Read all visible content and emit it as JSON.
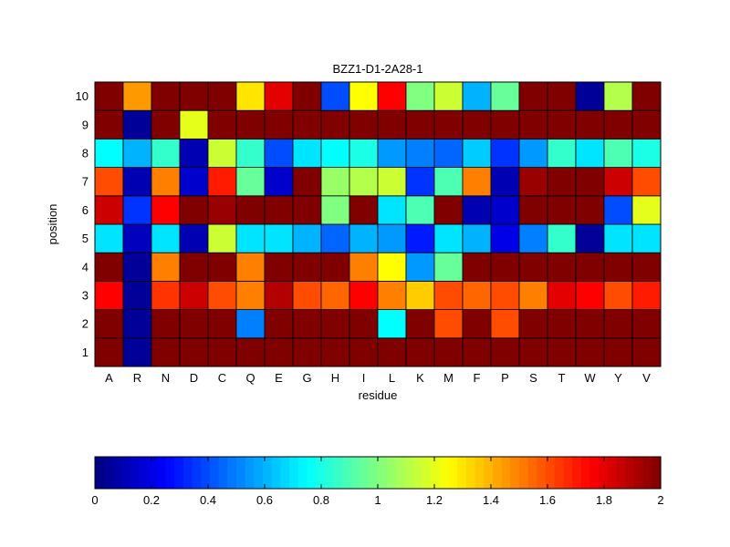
{
  "chart_data": {
    "type": "heatmap",
    "title": "BZZ1-D1-2A28-1",
    "xlabel": "residue",
    "ylabel": "position",
    "x_categories": [
      "A",
      "R",
      "N",
      "D",
      "C",
      "Q",
      "E",
      "G",
      "H",
      "I",
      "L",
      "K",
      "M",
      "F",
      "P",
      "S",
      "T",
      "W",
      "Y",
      "V"
    ],
    "y_categories": [
      "1",
      "2",
      "3",
      "4",
      "5",
      "6",
      "7",
      "8",
      "9",
      "10"
    ],
    "values": [
      [
        2.0,
        0.05,
        2.0,
        2.0,
        2.0,
        2.0,
        2.0,
        2.0,
        2.0,
        2.0,
        2.0,
        2.0,
        2.0,
        2.0,
        2.0,
        2.0,
        2.0,
        2.0,
        2.0,
        2.0
      ],
      [
        2.0,
        0.05,
        2.0,
        2.0,
        2.0,
        0.5,
        2.0,
        2.0,
        2.0,
        2.0,
        0.75,
        2.0,
        1.6,
        2.0,
        1.6,
        2.0,
        2.0,
        2.0,
        2.0,
        2.0
      ],
      [
        1.75,
        0.05,
        1.65,
        1.85,
        1.6,
        1.5,
        1.9,
        1.6,
        1.55,
        1.75,
        1.5,
        1.35,
        1.6,
        1.55,
        1.6,
        1.5,
        1.8,
        1.75,
        1.6,
        1.7
      ],
      [
        2.0,
        0.05,
        1.5,
        2.0,
        2.0,
        1.5,
        2.0,
        2.0,
        2.0,
        1.5,
        1.25,
        0.55,
        0.95,
        2.0,
        2.0,
        2.0,
        2.0,
        2.0,
        2.0,
        2.0
      ],
      [
        0.7,
        0.12,
        0.7,
        0.1,
        1.15,
        0.7,
        0.7,
        0.6,
        0.45,
        0.6,
        0.55,
        0.3,
        0.7,
        0.6,
        0.2,
        0.5,
        0.85,
        0.05,
        0.7,
        0.7
      ],
      [
        1.85,
        0.35,
        1.75,
        2.0,
        1.95,
        2.0,
        2.0,
        2.0,
        1.0,
        2.0,
        0.7,
        0.9,
        2.0,
        0.1,
        0.15,
        2.0,
        2.0,
        2.0,
        0.4,
        1.2
      ],
      [
        1.6,
        0.1,
        1.5,
        0.15,
        1.7,
        0.95,
        0.15,
        2.0,
        1.05,
        1.1,
        1.15,
        0.35,
        0.9,
        1.5,
        0.1,
        1.95,
        2.0,
        2.0,
        1.85,
        1.6
      ],
      [
        0.75,
        0.6,
        0.85,
        0.1,
        1.15,
        0.85,
        0.4,
        0.7,
        0.75,
        0.8,
        0.55,
        0.5,
        0.45,
        0.65,
        0.35,
        0.55,
        0.85,
        0.7,
        0.9,
        0.8
      ],
      [
        2.0,
        0.05,
        2.0,
        1.2,
        2.0,
        2.0,
        2.0,
        2.0,
        2.0,
        2.0,
        2.0,
        2.0,
        2.0,
        2.0,
        2.0,
        2.0,
        2.0,
        2.0,
        2.0,
        2.0
      ],
      [
        2.0,
        1.45,
        2.0,
        2.0,
        2.0,
        1.3,
        1.8,
        2.0,
        0.4,
        1.25,
        1.75,
        1.0,
        1.15,
        0.6,
        0.95,
        2.0,
        2.0,
        0.05,
        1.1,
        2.0
      ]
    ],
    "color_scale": "jet",
    "clim": [
      0,
      2
    ],
    "colorbar": {
      "orientation": "horizontal",
      "ticks": [
        "0",
        "0.2",
        "0.4",
        "0.6",
        "0.8",
        "1",
        "1.2",
        "1.4",
        "1.6",
        "1.8",
        "2"
      ]
    }
  }
}
